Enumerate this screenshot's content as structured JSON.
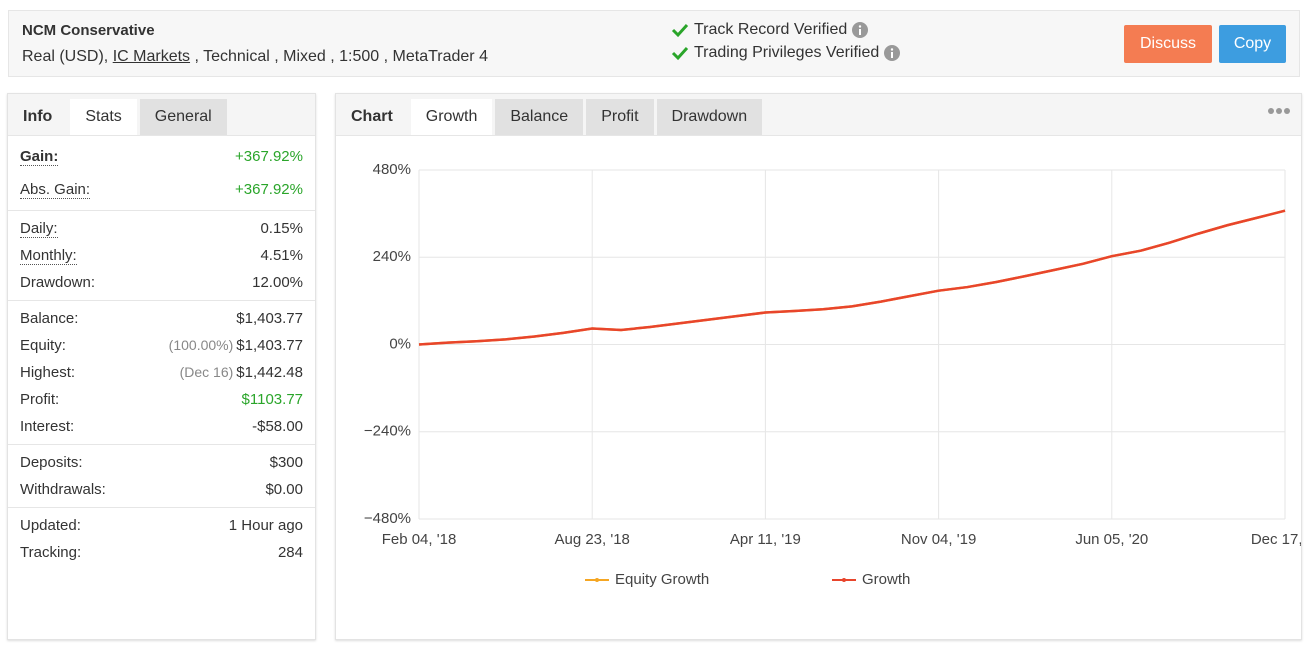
{
  "header": {
    "title": "NCM Conservative",
    "account": {
      "prefix": "Real (USD),",
      "broker": "IC Markets",
      "suffix": ", Technical , Mixed , 1:500 , MetaTrader 4"
    },
    "verifications": [
      "Track Record Verified",
      "Trading Privileges Verified"
    ],
    "buttons": [
      "Discuss",
      "Copy"
    ]
  },
  "left_tabs": [
    "Info",
    "Stats",
    "General"
  ],
  "stats": {
    "groups": [
      {
        "rows": [
          {
            "label": "Gain:",
            "value": "+367.92%",
            "color": "#2aa52a"
          },
          {
            "label": "Abs. Gain:",
            "value": "+367.92%",
            "color": "#2aa52a"
          }
        ]
      },
      {
        "rows": [
          {
            "label": "Daily:",
            "value": "0.15%"
          },
          {
            "label": "Monthly:",
            "value": "4.51%"
          },
          {
            "label": "Drawdown:",
            "value": "12.00%"
          }
        ]
      },
      {
        "rows": [
          {
            "label": "Balance:",
            "value": "$1,403.77"
          },
          {
            "label": "Equity:",
            "note": "(100.00%)",
            "value": "$1,403.77"
          },
          {
            "label": "Highest:",
            "note": "(Dec 16)",
            "value": "$1,442.48"
          },
          {
            "label": "Profit:",
            "value": "$1103.77",
            "color": "#2aa52a"
          },
          {
            "label": "Interest:",
            "value": "-$58.00"
          }
        ]
      },
      {
        "rows": [
          {
            "label": "Deposits:",
            "value": "$300"
          },
          {
            "label": "Withdrawals:",
            "value": "$0.00"
          }
        ]
      },
      {
        "rows": [
          {
            "label": "Updated:",
            "value": "1 Hour ago"
          },
          {
            "label": "Tracking:",
            "value": "284"
          }
        ]
      }
    ]
  },
  "chart_tabs": [
    "Chart",
    "Growth",
    "Balance",
    "Profit",
    "Drawdown"
  ],
  "chart_data": {
    "type": "line",
    "categories": [
      "Feb 04, '18",
      null,
      null,
      null,
      null,
      null,
      "Aug 23, '18",
      null,
      null,
      null,
      null,
      null,
      "Apr 11, '19",
      null,
      null,
      null,
      null,
      null,
      "Nov 04, '19",
      null,
      null,
      null,
      null,
      null,
      "Jun 05, '20",
      null,
      null,
      null,
      null,
      null,
      "Dec 17, ..."
    ],
    "series": [
      {
        "name": "Equity Growth",
        "color": "#f5a623",
        "values": [
          0,
          5,
          9,
          14,
          22,
          32,
          44,
          40,
          48,
          58,
          68,
          78,
          88,
          92,
          97,
          105,
          118,
          133,
          148,
          158,
          172,
          188,
          205,
          222,
          243,
          258,
          280,
          305,
          328,
          348,
          368
        ]
      },
      {
        "name": "Growth",
        "color": "#e8452c",
        "values": [
          0,
          5,
          9,
          14,
          22,
          32,
          44,
          40,
          48,
          58,
          68,
          78,
          88,
          92,
          97,
          105,
          118,
          133,
          148,
          158,
          172,
          188,
          205,
          222,
          243,
          258,
          280,
          305,
          328,
          348,
          368
        ]
      }
    ],
    "ylim": [
      -480,
      480
    ],
    "yticks": [
      {
        "value": 480,
        "label": "480%"
      },
      {
        "value": 240,
        "label": "240%"
      },
      {
        "value": 0,
        "label": "0%"
      },
      {
        "value": -240,
        "label": "−240%"
      },
      {
        "value": -480,
        "label": "−480%"
      }
    ],
    "grid": true
  }
}
